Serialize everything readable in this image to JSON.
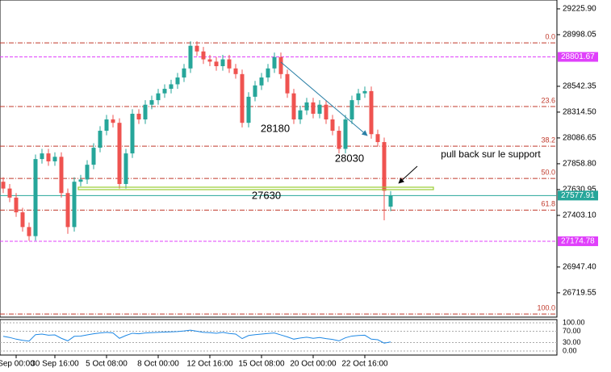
{
  "chart_data": {
    "type": "candlestick",
    "categories": [
      null,
      null,
      "Sep 00:00",
      null,
      null,
      null,
      null,
      null,
      "30 Sep 16:00",
      null,
      null,
      null,
      null,
      null,
      null,
      null,
      "5 Oct 08:00",
      null,
      null,
      null,
      null,
      null,
      null,
      null,
      "8 Oct 00:00",
      null,
      null,
      null,
      null,
      null,
      null,
      null,
      "12 Oct 16:00",
      null,
      null,
      null,
      null,
      null,
      null,
      null,
      "15 Oct 08:00",
      null,
      null,
      null,
      null,
      null,
      null,
      null,
      "20 Oct 00:00",
      null,
      null,
      null,
      null,
      null,
      null,
      null,
      "22 Oct 16:00",
      null,
      null,
      null,
      null
    ],
    "open": [
      27700,
      27640,
      27560,
      27430,
      27300,
      27220,
      27900,
      27950,
      27880,
      27920,
      27600,
      27300,
      27700,
      27720,
      27850,
      28000,
      28150,
      28250,
      28220,
      27680,
      27950,
      28300,
      28250,
      28380,
      28420,
      28480,
      28520,
      28560,
      28620,
      28700,
      28900,
      28850,
      28780,
      28760,
      28720,
      28780,
      28700,
      28650,
      28220,
      28450,
      28550,
      28620,
      28700,
      28800,
      28650,
      28480,
      28250,
      28330,
      28400,
      28300,
      28380,
      28250,
      28150,
      27990,
      28250,
      28420,
      28480,
      28500,
      28120,
      28050,
      27480
    ],
    "high": [
      27740,
      27680,
      27600,
      27470,
      27340,
      27940,
      27990,
      27990,
      27960,
      27960,
      27640,
      27740,
      27760,
      27890,
      28040,
      28190,
      28290,
      28290,
      28260,
      27990,
      28340,
      28340,
      28420,
      28460,
      28520,
      28560,
      28600,
      28660,
      28740,
      28940,
      28940,
      28890,
      28820,
      28800,
      28820,
      28820,
      28740,
      28690,
      28490,
      28590,
      28660,
      28740,
      28840,
      28840,
      28690,
      28520,
      28370,
      28440,
      28440,
      28420,
      28420,
      28290,
      28190,
      28290,
      28460,
      28520,
      28540,
      28540,
      28160,
      28090,
      27618
    ],
    "low": [
      27600,
      27520,
      27390,
      27260,
      27180,
      27180,
      27860,
      27840,
      27840,
      27560,
      27240,
      27260,
      27660,
      27680,
      27810,
      27960,
      28110,
      28180,
      27640,
      27640,
      27910,
      28210,
      28210,
      28340,
      28380,
      28440,
      28480,
      28520,
      28580,
      28660,
      28810,
      28740,
      28720,
      28680,
      28680,
      28660,
      28610,
      28180,
      28180,
      28410,
      28510,
      28580,
      28660,
      28610,
      28440,
      28210,
      28210,
      28290,
      28260,
      28260,
      28210,
      28110,
      27950,
      27950,
      28210,
      28380,
      28440,
      28080,
      28010,
      27360,
      27440
    ],
    "close": [
      27640,
      27560,
      27430,
      27300,
      27220,
      27900,
      27950,
      27880,
      27920,
      27600,
      27300,
      27700,
      27720,
      27850,
      28000,
      28150,
      28250,
      28220,
      27680,
      27950,
      28300,
      28250,
      28380,
      28420,
      28480,
      28520,
      28560,
      28620,
      28700,
      28900,
      28850,
      28780,
      28760,
      28720,
      28780,
      28700,
      28650,
      28220,
      28450,
      28550,
      28620,
      28700,
      28800,
      28650,
      28480,
      28250,
      28330,
      28400,
      28300,
      28380,
      28250,
      28150,
      27990,
      28250,
      28420,
      28480,
      28500,
      28120,
      28050,
      27620,
      27578
    ],
    "up_color": "#26a69a",
    "down_color": "#ef5350",
    "ylim": [
      26505,
      29304
    ],
    "yticks": [
      {
        "value": 29225.9,
        "label": "29225.90"
      },
      {
        "value": 28998.05,
        "label": "28998.05"
      },
      {
        "value": 28542.35,
        "label": "28542.35"
      },
      {
        "value": 28314.5,
        "label": "28314.50"
      },
      {
        "value": 28086.65,
        "label": "28086.65"
      },
      {
        "value": 27858.8,
        "label": "27858.80"
      },
      {
        "value": 27630.95,
        "label": "27630.95"
      },
      {
        "value": 27403.1,
        "label": "27403.10"
      },
      {
        "value": 26947.4,
        "label": "26947.40"
      },
      {
        "value": 26719.55,
        "label": "26719.55"
      }
    ],
    "levels": [
      {
        "label": "0.0",
        "value": 28926
      },
      {
        "label": "23.6",
        "value": 28364
      },
      {
        "label": "38.2",
        "value": 28014
      },
      {
        "label": "50.0",
        "value": 27729
      },
      {
        "label": "61.8",
        "value": 27450
      },
      {
        "label": "100.0",
        "value": 26533
      }
    ],
    "level_color": "#c0392b",
    "price_lines": [
      {
        "value": 28801.67,
        "color": "#e040fb"
      },
      {
        "value": 27174.78,
        "color": "#e040fb"
      }
    ],
    "current_price": {
      "value": 27577.91,
      "color": "#26a69a"
    },
    "annotations": [
      "28180",
      "28030",
      "27630",
      "pull back sur le support"
    ],
    "indicator": {
      "values": [
        52,
        48,
        42,
        38,
        35,
        58,
        60,
        56,
        57,
        45,
        36,
        52,
        53,
        57,
        61,
        64,
        66,
        64,
        45,
        55,
        63,
        61,
        64,
        65,
        66,
        67,
        68,
        69,
        71,
        74,
        70,
        66,
        65,
        63,
        66,
        62,
        60,
        44,
        55,
        58,
        60,
        62,
        64,
        57,
        50,
        42,
        46,
        49,
        45,
        48,
        44,
        41,
        36,
        47,
        53,
        55,
        56,
        42,
        40,
        28,
        32
      ],
      "color": "#1e88e5",
      "ylim": [
        0,
        100
      ],
      "yticks": [
        {
          "value": 100,
          "label": "100.00"
        },
        {
          "value": 70,
          "label": "70.00"
        },
        {
          "value": 30,
          "label": "30.00"
        },
        {
          "value": 0,
          "label": "0.00"
        }
      ]
    }
  }
}
